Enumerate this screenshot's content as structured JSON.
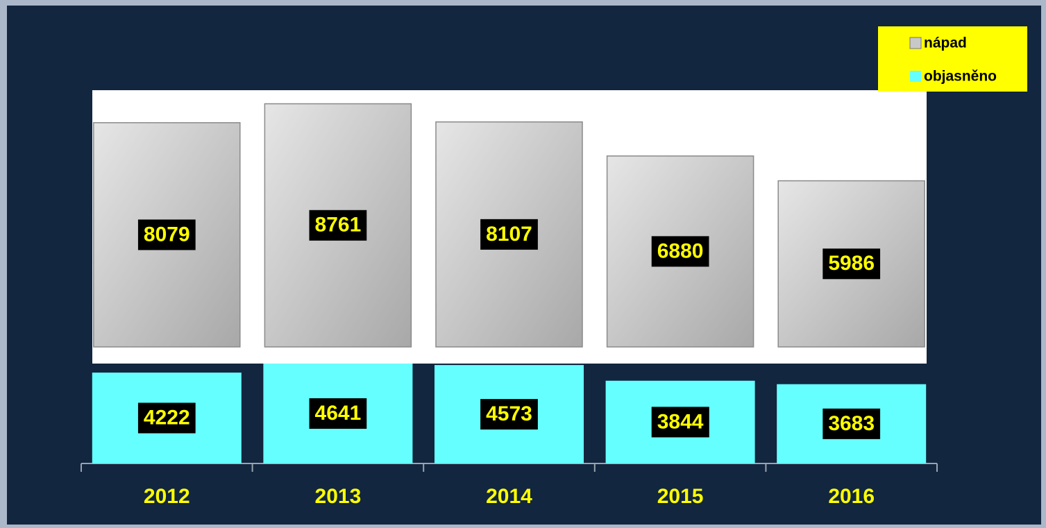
{
  "chart_data": {
    "type": "bar",
    "categories": [
      "2012",
      "2013",
      "2014",
      "2015",
      "2016"
    ],
    "series": [
      {
        "name": "nápad",
        "color": "#c8c8c8",
        "values": [
          8079,
          8761,
          8107,
          6880,
          5986
        ]
      },
      {
        "name": "objasněno",
        "color": "#66ffff",
        "values": [
          4222,
          4641,
          4573,
          3844,
          3683
        ]
      }
    ],
    "legend": "top-right"
  }
}
